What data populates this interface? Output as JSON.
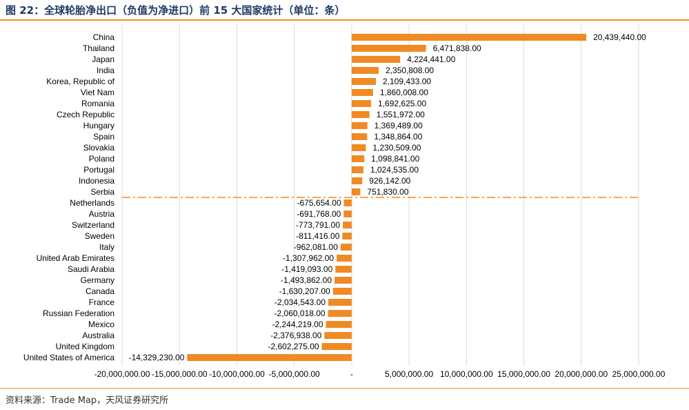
{
  "title": "图 22：全球轮胎净出口（负值为净进口）前 15 大国家统计（单位：条）",
  "source": "资料来源：Trade Map，天风证券研究所",
  "colors": {
    "bar": "#f08a24",
    "grid": "#d9d9d9",
    "accent": "#f08a24",
    "title": "#1f3864"
  },
  "chart_data": {
    "type": "bar",
    "orientation": "horizontal",
    "categories": [
      "China",
      "Thailand",
      "Japan",
      "India",
      "Korea, Republic of",
      "Viet Nam",
      "Romania",
      "Czech Republic",
      "Hungary",
      "Spain",
      "Slovakia",
      "Poland",
      "Portugal",
      "Indonesia",
      "Serbia",
      "Netherlands",
      "Austria",
      "Switzerland",
      "Sweden",
      "Italy",
      "United Arab Emirates",
      "Saudi Arabia",
      "Germany",
      "Canada",
      "France",
      "Russian Federation",
      "Mexico",
      "Australia",
      "United Kingdom",
      "United States of America"
    ],
    "values": [
      20439440,
      6471838,
      4224441,
      2350808,
      2109433,
      1860008,
      1692625,
      1551972,
      1369489,
      1348864,
      1230509,
      1098841,
      1024535,
      926142,
      751830,
      -675654,
      -691768,
      -773791,
      -811416,
      -962081,
      -1307962,
      -1419093,
      -1493862,
      -1630207,
      -2034543,
      -2060018,
      -2244219,
      -2376938,
      -2602275,
      -14329230
    ],
    "value_labels": [
      "20,439,440.00",
      "6,471,838.00",
      "4,224,441.00",
      "2,350,808.00",
      "2,109,433.00",
      "1,860,008.00",
      "1,692,625.00",
      "1,551,972.00",
      "1,369,489.00",
      "1,348,864.00",
      "1,230,509.00",
      "1,098,841.00",
      "1,024,535.00",
      "926,142.00",
      "751,830.00",
      "-675,654.00",
      "-691,768.00",
      "-773,791.00",
      "-811,416.00",
      "-962,081.00",
      "-1,307,962.00",
      "-1,419,093.00",
      "-1,493,862.00",
      "-1,630,207.00",
      "-2,034,543.00",
      "-2,060,018.00",
      "-2,244,219.00",
      "-2,376,938.00",
      "-2,602,275.00",
      "-14,329,230.00"
    ],
    "xlim": [
      -20000000,
      25000000
    ],
    "xticks": [
      -20000000,
      -15000000,
      -10000000,
      -5000000,
      0,
      5000000,
      10000000,
      15000000,
      20000000,
      25000000
    ],
    "xtick_labels": [
      "-20,000,000.00",
      "-15,000,000.00",
      "-10,000,000.00",
      "-5,000,000.00",
      "-",
      "5,000,000.00",
      "10,000,000.00",
      "15,000,000.00",
      "20,000,000.00",
      "25,000,000.00"
    ],
    "grid": true,
    "divider_after_index": 14
  }
}
